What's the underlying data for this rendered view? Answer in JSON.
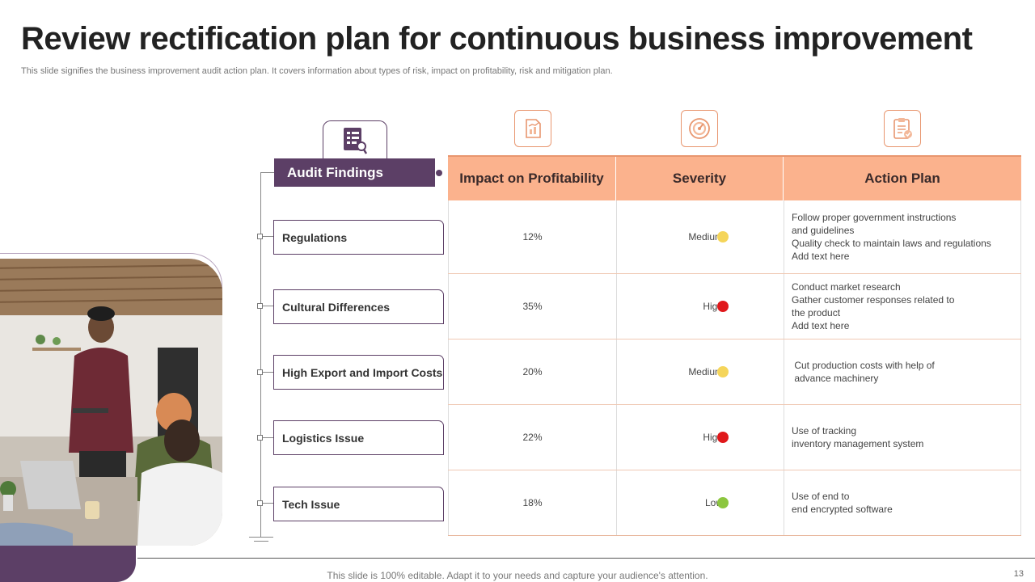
{
  "title": "Review rectification plan for continuous business improvement",
  "subtitle": "This slide signifies the business improvement audit action plan. It covers information about types of risk, impact on profitability, risk and mitigation plan.",
  "audit": {
    "header": "Audit Findings",
    "icon": "audit-checklist-icon"
  },
  "findings": [
    "Regulations",
    "Cultural Differences",
    "High Export and Import Costs",
    "Logistics Issue",
    "Tech Issue"
  ],
  "columns": {
    "impact": "Impact on Profitability",
    "severity": "Severity",
    "action": "Action Plan"
  },
  "column_icons": [
    "report-chart-icon",
    "gauge-icon",
    "clipboard-check-icon"
  ],
  "rows": [
    {
      "impact": "12%",
      "severity": "Medium",
      "severity_color": "#f5d55a",
      "plan": [
        "Follow proper government  instructions",
        "and guidelines",
        "Quality check to maintain laws and regulations",
        "Add text here"
      ]
    },
    {
      "impact": "35%",
      "severity": "High",
      "severity_color": "#e0181b",
      "plan": [
        "Conduct market research",
        "Gather customer responses related to",
        "the product",
        "Add text here"
      ]
    },
    {
      "impact": "20%",
      "severity": "Medium",
      "severity_color": "#f5d55a",
      "plan": [
        " Cut production costs with help of",
        " advance machinery"
      ]
    },
    {
      "impact": "22%",
      "severity": "High",
      "severity_color": "#e0181b",
      "plan": [
        "Use of tracking",
        "inventory management system"
      ]
    },
    {
      "impact": "18%",
      "severity": "Low",
      "severity_color": "#8cc63f",
      "plan": [
        "Use of end to",
        "end encrypted software"
      ]
    }
  ],
  "colors": {
    "accent_purple": "#5c3f66",
    "header_peach": "#fbb28d",
    "icon_orange": "#e8966f"
  },
  "footer": "This slide is 100% editable. Adapt it to your needs and capture your audience's attention.",
  "page_number": "13"
}
